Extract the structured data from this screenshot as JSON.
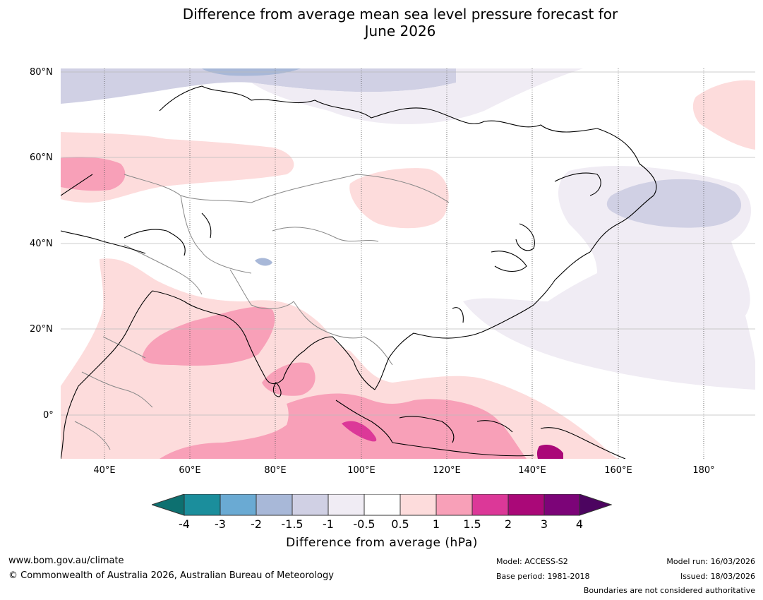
{
  "title_line1": "Difference from average mean sea level pressure forecast for",
  "title_line2": "June 2026",
  "lat_labels": [
    "80°N",
    "60°N",
    "40°N",
    "20°N",
    "0°"
  ],
  "lon_labels": [
    "40°E",
    "60°E",
    "80°E",
    "100°E",
    "120°E",
    "140°E",
    "160°E",
    "180°"
  ],
  "legend": {
    "ticks": [
      "-4",
      "-3",
      "-2",
      "-1.5",
      "-1",
      "-0.5",
      "0.5",
      "1",
      "1.5",
      "2",
      "3",
      "4"
    ],
    "colors": [
      "#0d7070",
      "#1b8e9c",
      "#6aaad3",
      "#a8b8d8",
      "#d0d0e4",
      "#f0ecf4",
      "#ffffff",
      "#fddcdc",
      "#f8a0b8",
      "#dc3898",
      "#aa0878",
      "#7c0478",
      "#4c0460"
    ],
    "label": "Difference from average (hPa)"
  },
  "footer": {
    "website": "www.bom.gov.au/climate",
    "copyright": "© Commonwealth of Australia 2026, Australian Bureau of Meteorology",
    "model": "Model: ACCESS-S2",
    "base_period": "Base period: 1981-2018",
    "model_run": "Model run: 16/03/2026",
    "issued": "Issued: 18/03/2026",
    "disclaimer": "Boundaries are not considered authoritative"
  }
}
